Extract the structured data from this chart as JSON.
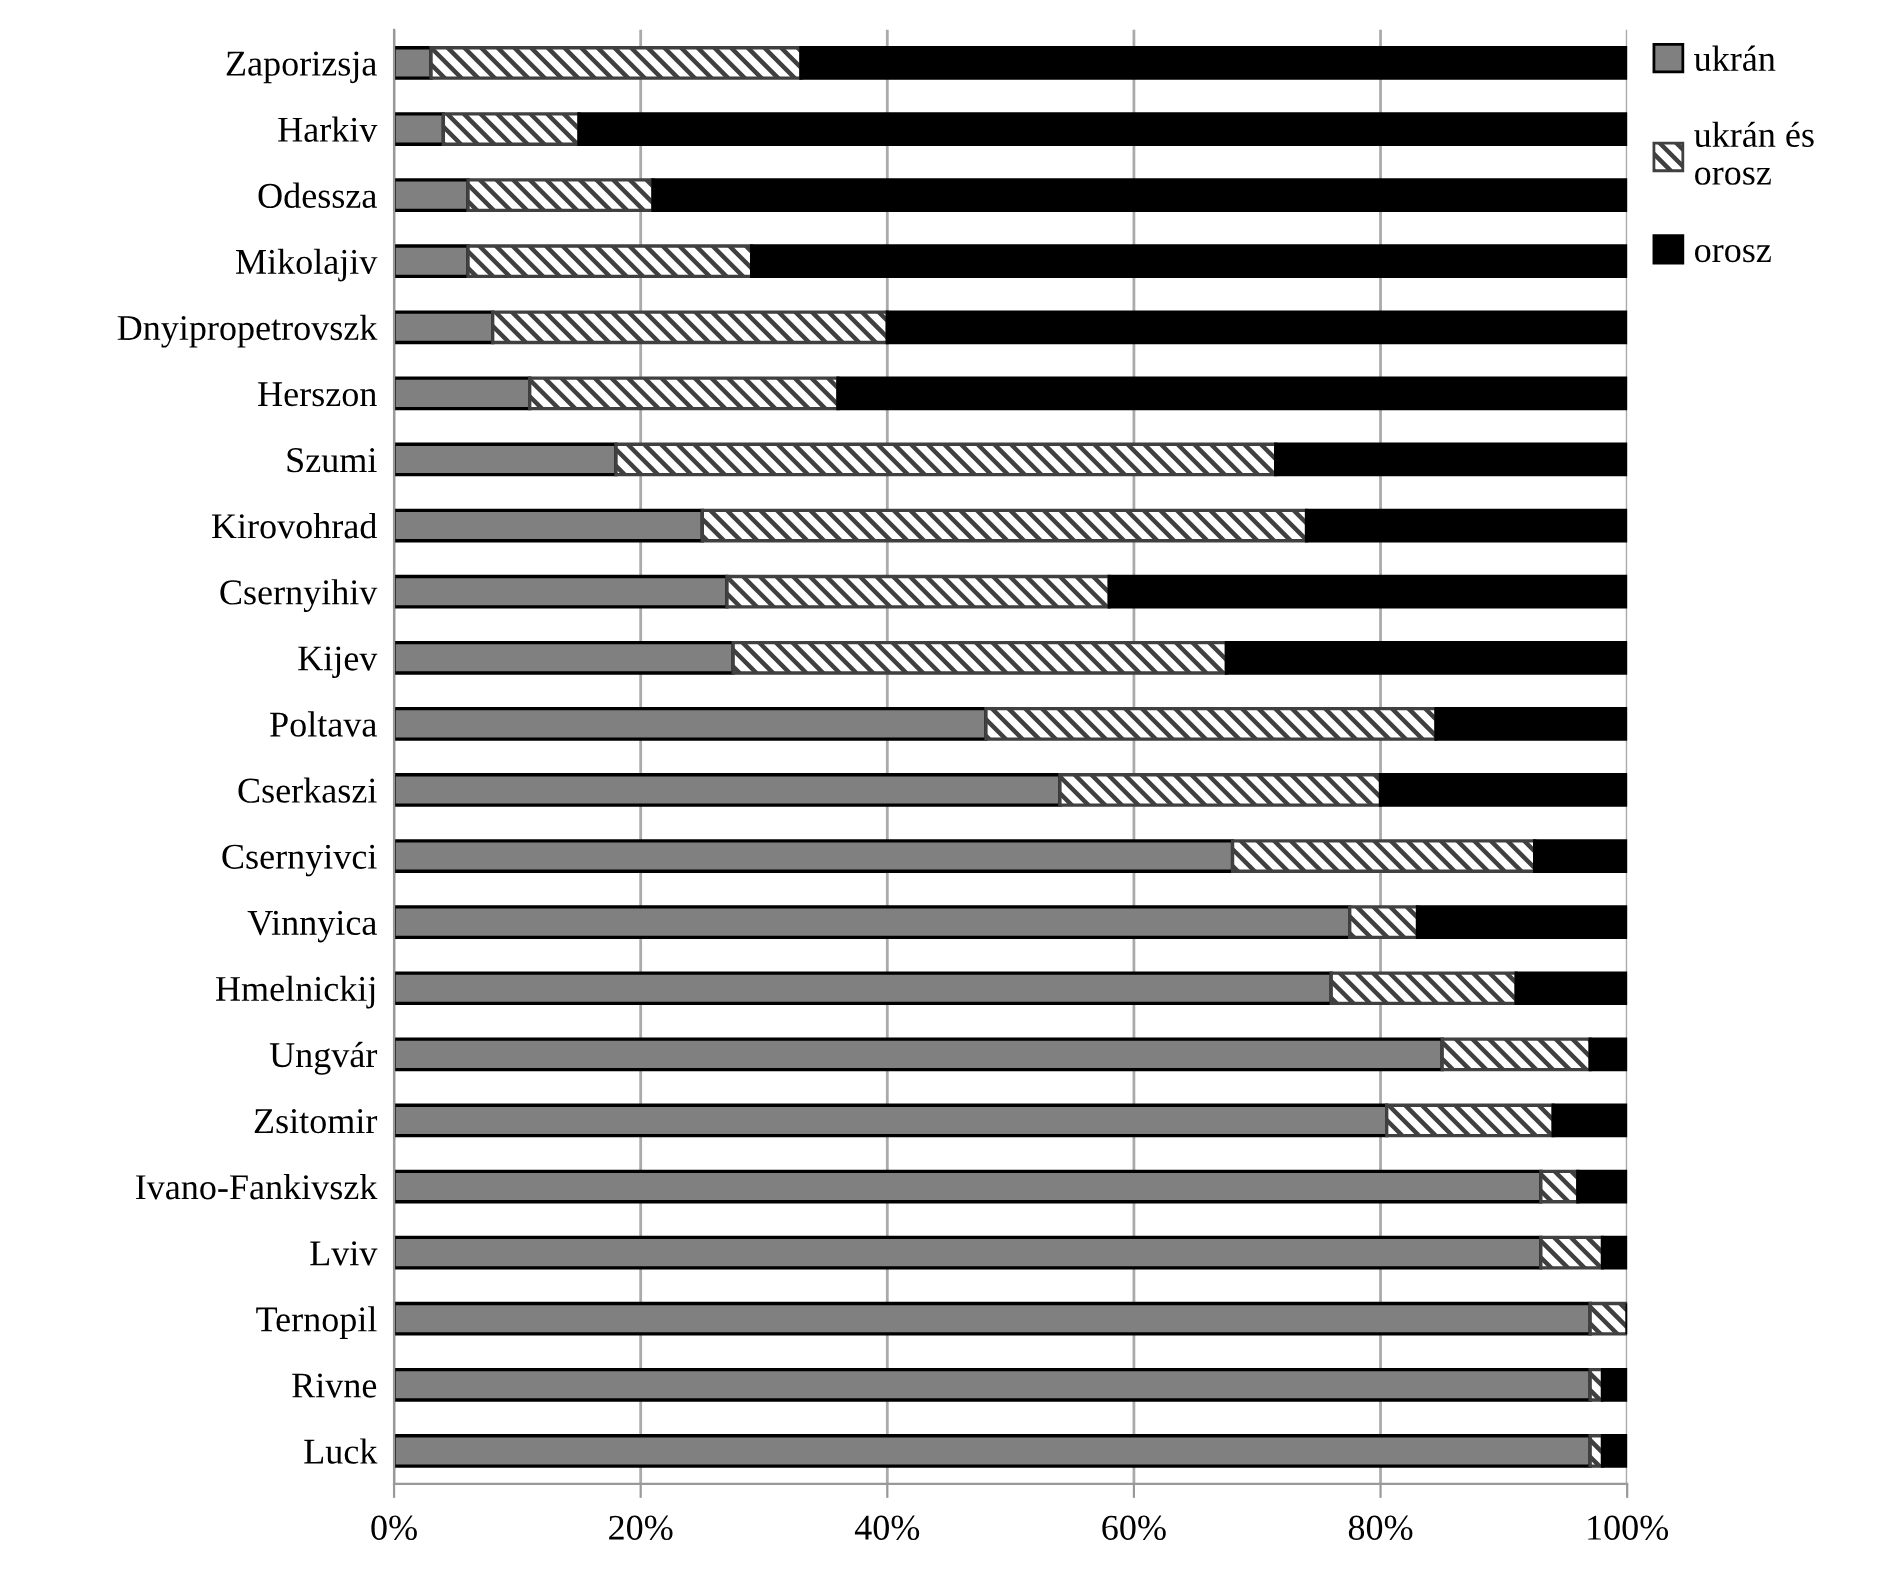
{
  "chart_data": {
    "type": "bar",
    "orientation": "horizontal",
    "stacked": true,
    "categories": [
      "Zaporizsja",
      "Harkiv",
      "Odessza",
      "Mikolajiv",
      "Dnyipropetrovszk",
      "Herszon",
      "Szumi",
      "Kirovohrad",
      "Csernyihiv",
      "Kijev",
      "Poltava",
      "Cserkaszi",
      "Csernyivci",
      "Vinnyica",
      "Hmelnickij",
      "Ungvár",
      "Zsitomir",
      "Ivano-Fankivszk",
      "Lviv",
      "Ternopil",
      "Rivne",
      "Luck"
    ],
    "series": [
      {
        "name": "ukrán",
        "color": "#808080",
        "values": [
          3,
          4,
          6,
          6,
          8,
          11,
          18,
          25,
          27,
          27.5,
          48,
          54,
          68,
          77.5,
          76,
          85,
          80.5,
          93,
          93,
          97,
          97,
          97
        ]
      },
      {
        "name": "ukrán és orosz",
        "color": "#404040",
        "values": [
          30,
          11,
          15,
          23,
          32,
          25,
          53.5,
          49,
          31,
          40,
          36.5,
          26,
          24.5,
          5.5,
          15,
          12,
          13.5,
          3,
          5,
          3,
          1,
          1
        ]
      },
      {
        "name": "orosz",
        "color": "#000000",
        "values": [
          67,
          85,
          79,
          71,
          60,
          64,
          28.5,
          26,
          42,
          32.5,
          15.5,
          20,
          7.5,
          17,
          9,
          3,
          6,
          4,
          2,
          0,
          2,
          2
        ]
      }
    ],
    "xlim": [
      0,
      100
    ],
    "xticks": [
      {
        "value": 0,
        "label": "0%"
      },
      {
        "value": 20,
        "label": "20%"
      },
      {
        "value": 40,
        "label": "40%"
      },
      {
        "value": 60,
        "label": "60%"
      },
      {
        "value": 80,
        "label": "80%"
      },
      {
        "value": 100,
        "label": "100%"
      }
    ],
    "grid": "x",
    "legend": "top right"
  }
}
